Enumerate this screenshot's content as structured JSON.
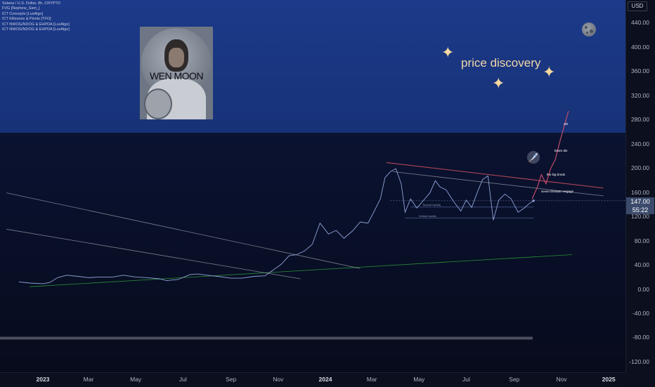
{
  "window": {
    "symbol_title": "Solana / U.S. Dollar, 8h, CRYPTO",
    "currency": "USD"
  },
  "indicators": [
    "FVG [Nephew_Sam_]",
    "ICT Concepts [LuxAlgo]",
    "ICT Killzones & Pivots [TFO]",
    "ICT NWOG/NDOG & EHPDA [LuxAlgo]",
    "ICT NWOG/NDOG & EHPDA [LuxAlgo]"
  ],
  "banner": {
    "portrait_caption": "WEN MOON",
    "headline": "price discovery"
  },
  "annotations": {
    "ath": "ath",
    "bears_die": "bears die",
    "big_break": "the big break",
    "seven_threaten": "seven threaten engage",
    "buyside_liquidity": "Buyside liquidity",
    "sellside_liquidity": "Sellside liquidity"
  },
  "price_tags": {
    "last_price": "147.00",
    "countdown": "55:22"
  },
  "colors": {
    "banner": "#1c3a8a",
    "price_line": "#8fa3d8",
    "trend_green": "#2e9b3a",
    "trend_grey": "#a9adb8",
    "resistance_red": "#b5495b",
    "projection": "#c04b6a",
    "sparkle": "#f6d9a0"
  },
  "chart_data": {
    "type": "line",
    "title": "Solana / U.S. Dollar, 8h, CRYPTO",
    "xlabel": "",
    "ylabel": "",
    "y_axis_unit": "USD",
    "ylim": [
      -130,
      470
    ],
    "y_ticks": [
      440,
      400,
      360,
      320,
      280,
      240,
      200,
      160,
      120,
      80,
      40,
      0,
      -40,
      -80,
      -120
    ],
    "y_tick_labels": [
      "440.00",
      "400.00",
      "360.00",
      "320.00",
      "280.00",
      "240.00",
      "200.00",
      "160.00",
      "120.00",
      "80.00",
      "40.00",
      "0.00",
      "-40.00",
      "-80.00",
      "-120.00"
    ],
    "x_ticks": [
      {
        "label": "2023",
        "date": "2023-01-01",
        "bold": true
      },
      {
        "label": "Mar",
        "date": "2023-03-01"
      },
      {
        "label": "May",
        "date": "2023-05-01"
      },
      {
        "label": "Jul",
        "date": "2023-07-01"
      },
      {
        "label": "Sep",
        "date": "2023-09-01"
      },
      {
        "label": "Nov",
        "date": "2023-11-01"
      },
      {
        "label": "2024",
        "date": "2024-01-01",
        "bold": true
      },
      {
        "label": "Mar",
        "date": "2024-03-01"
      },
      {
        "label": "May",
        "date": "2024-05-01"
      },
      {
        "label": "Jul",
        "date": "2024-07-01"
      },
      {
        "label": "Sep",
        "date": "2024-09-01"
      },
      {
        "label": "Nov",
        "date": "2024-11-01"
      },
      {
        "label": "2025",
        "date": "2025-01-01",
        "bold": true
      }
    ],
    "grid": false,
    "series": [
      {
        "points": [
          [
            "2022-12-01",
            13
          ],
          [
            "2022-12-15",
            11
          ],
          [
            "2023-01-01",
            10
          ],
          [
            "2023-01-10",
            12
          ],
          [
            "2023-01-20",
            20
          ],
          [
            "2023-02-01",
            24
          ],
          [
            "2023-02-15",
            22
          ],
          [
            "2023-03-01",
            20
          ],
          [
            "2023-03-15",
            21
          ],
          [
            "2023-04-01",
            21
          ],
          [
            "2023-04-15",
            24
          ],
          [
            "2023-05-01",
            21
          ],
          [
            "2023-05-15",
            20
          ],
          [
            "2023-06-01",
            18
          ],
          [
            "2023-06-10",
            15
          ],
          [
            "2023-06-25",
            17
          ],
          [
            "2023-07-10",
            25
          ],
          [
            "2023-07-20",
            26
          ],
          [
            "2023-08-01",
            24
          ],
          [
            "2023-08-15",
            22
          ],
          [
            "2023-09-01",
            19
          ],
          [
            "2023-09-15",
            19
          ],
          [
            "2023-10-01",
            22
          ],
          [
            "2023-10-15",
            23
          ],
          [
            "2023-10-25",
            32
          ],
          [
            "2023-11-05",
            42
          ],
          [
            "2023-11-15",
            56
          ],
          [
            "2023-11-25",
            58
          ],
          [
            "2023-12-05",
            64
          ],
          [
            "2023-12-15",
            75
          ],
          [
            "2023-12-25",
            110
          ],
          [
            "2024-01-05",
            92
          ],
          [
            "2024-01-15",
            98
          ],
          [
            "2024-01-25",
            85
          ],
          [
            "2024-02-05",
            97
          ],
          [
            "2024-02-15",
            112
          ],
          [
            "2024-02-25",
            110
          ],
          [
            "2024-03-05",
            132
          ],
          [
            "2024-03-12",
            150
          ],
          [
            "2024-03-18",
            185
          ],
          [
            "2024-03-25",
            195
          ],
          [
            "2024-04-01",
            200
          ],
          [
            "2024-04-08",
            175
          ],
          [
            "2024-04-13",
            128
          ],
          [
            "2024-04-20",
            150
          ],
          [
            "2024-04-28",
            135
          ],
          [
            "2024-05-05",
            145
          ],
          [
            "2024-05-15",
            160
          ],
          [
            "2024-05-22",
            180
          ],
          [
            "2024-05-28",
            170
          ],
          [
            "2024-06-05",
            165
          ],
          [
            "2024-06-15",
            145
          ],
          [
            "2024-06-24",
            130
          ],
          [
            "2024-07-01",
            148
          ],
          [
            "2024-07-08",
            136
          ],
          [
            "2024-07-15",
            160
          ],
          [
            "2024-07-22",
            182
          ],
          [
            "2024-07-29",
            188
          ],
          [
            "2024-08-05",
            115
          ],
          [
            "2024-08-12",
            148
          ],
          [
            "2024-08-20",
            158
          ],
          [
            "2024-08-28",
            150
          ],
          [
            "2024-09-06",
            128
          ],
          [
            "2024-09-14",
            135
          ],
          [
            "2024-09-20",
            142
          ],
          [
            "2024-09-26",
            147
          ]
        ]
      }
    ],
    "trendlines": [
      {
        "kind": "support",
        "color": "green",
        "from": [
          "2022-12-15",
          5
        ],
        "to": [
          "2024-11-15",
          58
        ]
      },
      {
        "kind": "descending",
        "color": "grey",
        "from": [
          "2022-11-15",
          160
        ],
        "to": [
          "2024-02-15",
          35
        ]
      },
      {
        "kind": "descending",
        "color": "grey",
        "from": [
          "2022-11-15",
          100
        ],
        "to": [
          "2023-11-30",
          18
        ]
      },
      {
        "kind": "resistance",
        "color": "red",
        "from": [
          "2024-03-20",
          210
        ],
        "to": [
          "2024-12-25",
          168
        ]
      },
      {
        "kind": "resistance",
        "color": "grey",
        "from": [
          "2024-03-28",
          195
        ],
        "to": [
          "2024-12-25",
          155
        ]
      }
    ],
    "projection": [
      [
        "2024-09-24",
        150
      ],
      [
        "2024-10-01",
        170
      ],
      [
        "2024-10-06",
        190
      ],
      [
        "2024-10-12",
        175
      ],
      [
        "2024-10-18",
        200
      ],
      [
        "2024-10-24",
        215
      ],
      [
        "2024-10-30",
        245
      ],
      [
        "2024-11-10",
        295
      ]
    ],
    "last_price": 147.0
  }
}
